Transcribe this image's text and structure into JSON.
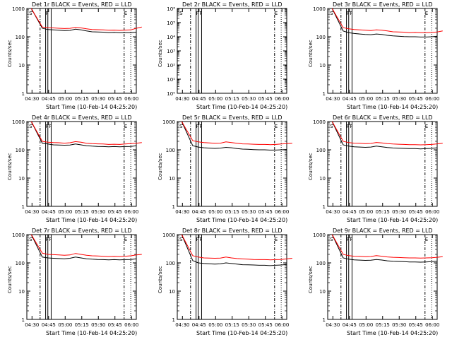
{
  "chart_data": [
    {
      "type": "line",
      "title": "Det 1r BLACK = Events, RED = LLD",
      "xlabel": "Start Time (10-Feb-14 04:25:20)",
      "ylabel": "Counts/sec",
      "yscale": "log",
      "ylim": [
        1,
        1000
      ],
      "ytick_labels": [
        "1",
        "10",
        "100",
        "1000"
      ],
      "xtick_labels": [
        "04:30",
        "04:45",
        "05:00",
        "05:15",
        "05:30",
        "05:45",
        "06:00"
      ],
      "markers": [
        "S",
        "F",
        "E"
      ],
      "x_minutes": [
        0,
        10,
        15,
        20,
        25,
        30,
        35,
        40,
        45,
        50,
        55,
        60,
        65,
        70,
        75,
        80,
        85,
        90,
        95,
        100
      ],
      "series": [
        {
          "name": "Events",
          "color": "#000000",
          "values": [
            1000,
            200,
            180,
            175,
            170,
            165,
            168,
            185,
            175,
            160,
            150,
            148,
            145,
            140,
            142,
            138,
            140,
            140,
            145,
            null
          ]
        },
        {
          "name": "LLD",
          "color": "#ff0000",
          "values": [
            1000,
            220,
            210,
            205,
            200,
            195,
            198,
            215,
            205,
            190,
            180,
            178,
            175,
            170,
            172,
            168,
            172,
            175,
            200,
            220
          ]
        }
      ]
    },
    {
      "type": "line",
      "title": "Det 2r BLACK = Events, RED = LLD",
      "xlabel": "Start Time (10-Feb-14 04:25:20)",
      "ylabel": "Counts/sec",
      "yscale": "log",
      "ylim": [
        1,
        1000000
      ],
      "ytick_labels": [
        "10⁰",
        "10¹",
        "10²",
        "10³",
        "10⁴",
        "10⁵",
        "10⁶"
      ],
      "xtick_labels": [
        "04:30",
        "04:45",
        "05:00",
        "05:15",
        "05:30",
        "05:45",
        "06:00"
      ],
      "markers": [
        "S",
        "F",
        "F",
        "E"
      ],
      "x_minutes": [],
      "series": [
        {
          "name": "Events",
          "color": "#000000",
          "values": []
        },
        {
          "name": "LLD",
          "color": "#ff0000",
          "values": []
        }
      ]
    },
    {
      "type": "line",
      "title": "Det 3r BLACK = Events, RED = LLD",
      "xlabel": "Start Time (10-Feb-14 04:25:20)",
      "ylabel": "Counts/sec",
      "yscale": "log",
      "ylim": [
        1,
        1000
      ],
      "ytick_labels": [
        "1",
        "10",
        "100",
        "1000"
      ],
      "xtick_labels": [
        "04:30",
        "04:45",
        "05:00",
        "05:15",
        "05:30",
        "05:45",
        "06:00"
      ],
      "markers": [
        "S",
        "F",
        "F",
        "E"
      ],
      "x_minutes": [
        0,
        10,
        15,
        20,
        25,
        30,
        35,
        40,
        45,
        50,
        55,
        60,
        65,
        70,
        75,
        80,
        85,
        90,
        95,
        100
      ],
      "series": [
        {
          "name": "Events",
          "color": "#000000",
          "values": [
            1000,
            160,
            140,
            130,
            125,
            120,
            118,
            125,
            120,
            112,
            108,
            105,
            102,
            100,
            100,
            98,
            98,
            100,
            105,
            null
          ]
        },
        {
          "name": "LLD",
          "color": "#ff0000",
          "values": [
            1000,
            210,
            190,
            180,
            175,
            170,
            165,
            175,
            170,
            160,
            150,
            148,
            145,
            140,
            142,
            140,
            140,
            142,
            148,
            160
          ]
        }
      ]
    },
    {
      "type": "line",
      "title": "Det 4r BLACK = Events, RED = LLD",
      "xlabel": "Start Time (10-Feb-14 04:25:20)",
      "ylabel": "Counts/sec",
      "yscale": "log",
      "ylim": [
        1,
        1000
      ],
      "ytick_labels": [
        "1",
        "10",
        "100",
        "1000"
      ],
      "xtick_labels": [
        "04:30",
        "04:45",
        "05:00",
        "05:15",
        "05:30",
        "05:45",
        "06:00"
      ],
      "markers": [
        "S",
        "F",
        "F",
        "E"
      ],
      "x_minutes": [
        0,
        10,
        15,
        20,
        25,
        30,
        35,
        40,
        45,
        50,
        55,
        60,
        65,
        70,
        75,
        80,
        85,
        90,
        95,
        100
      ],
      "series": [
        {
          "name": "Events",
          "color": "#000000",
          "values": [
            1000,
            170,
            160,
            150,
            148,
            145,
            148,
            160,
            150,
            140,
            135,
            132,
            130,
            128,
            130,
            128,
            130,
            132,
            140,
            null
          ]
        },
        {
          "name": "LLD",
          "color": "#ff0000",
          "values": [
            1000,
            200,
            185,
            180,
            178,
            172,
            178,
            195,
            185,
            170,
            165,
            162,
            160,
            155,
            158,
            155,
            160,
            165,
            170,
            180
          ]
        }
      ]
    },
    {
      "type": "line",
      "title": "Det 5r BLACK = Events, RED = LLD",
      "xlabel": "Start Time (10-Feb-14 04:25:20)",
      "ylabel": "Counts/sec",
      "yscale": "log",
      "ylim": [
        1,
        1000
      ],
      "ytick_labels": [
        "1",
        "10",
        "100",
        "1000"
      ],
      "xtick_labels": [
        "04:30",
        "04:45",
        "05:00",
        "05:15",
        "05:30",
        "05:45",
        "06:00"
      ],
      "markers": [
        "S",
        "F",
        "F",
        "E"
      ],
      "x_minutes": [
        0,
        10,
        15,
        20,
        25,
        30,
        35,
        40,
        45,
        50,
        55,
        60,
        65,
        70,
        75,
        80,
        85,
        90,
        95,
        100
      ],
      "series": [
        {
          "name": "Events",
          "color": "#000000",
          "values": [
            1000,
            140,
            125,
            118,
            115,
            112,
            115,
            122,
            118,
            110,
            106,
            104,
            102,
            100,
            100,
            98,
            98,
            100,
            103,
            null
          ]
        },
        {
          "name": "LLD",
          "color": "#ff0000",
          "values": [
            1000,
            210,
            190,
            180,
            175,
            170,
            172,
            190,
            180,
            170,
            162,
            160,
            158,
            155,
            155,
            152,
            155,
            160,
            165,
            170
          ]
        }
      ]
    },
    {
      "type": "line",
      "title": "Det 6r BLACK = Events, RED = LLD",
      "xlabel": "Start Time (10-Feb-14 04:25:20)",
      "ylabel": "Counts/sec",
      "yscale": "log",
      "ylim": [
        1,
        1000
      ],
      "ytick_labels": [
        "1",
        "10",
        "100",
        "1000"
      ],
      "xtick_labels": [
        "04:30",
        "04:45",
        "05:00",
        "05:15",
        "05:30",
        "05:45",
        "06:00"
      ],
      "markers": [
        "S",
        "F",
        "F",
        "E"
      ],
      "x_minutes": [
        0,
        10,
        15,
        20,
        25,
        30,
        35,
        40,
        45,
        50,
        55,
        60,
        65,
        70,
        75,
        80,
        85,
        90,
        95,
        100
      ],
      "series": [
        {
          "name": "Events",
          "color": "#000000",
          "values": [
            1000,
            150,
            135,
            128,
            125,
            122,
            125,
            135,
            128,
            120,
            116,
            114,
            112,
            110,
            110,
            108,
            110,
            112,
            118,
            null
          ]
        },
        {
          "name": "LLD",
          "color": "#ff0000",
          "values": [
            1000,
            200,
            180,
            172,
            170,
            165,
            168,
            182,
            175,
            165,
            160,
            158,
            155,
            152,
            152,
            150,
            152,
            155,
            162,
            170
          ]
        }
      ]
    },
    {
      "type": "line",
      "title": "Det 7r BLACK = Events, RED = LLD",
      "xlabel": "Start Time (10-Feb-14 04:25:20)",
      "ylabel": "Counts/sec",
      "yscale": "log",
      "ylim": [
        1,
        1000
      ],
      "ytick_labels": [
        "1",
        "10",
        "100",
        "1000"
      ],
      "xtick_labels": [
        "04:30",
        "04:45",
        "05:00",
        "05:15",
        "05:30",
        "05:45",
        "06:00"
      ],
      "markers": [
        "S",
        "F",
        "F",
        "E"
      ],
      "x_minutes": [
        0,
        10,
        15,
        20,
        25,
        30,
        35,
        40,
        45,
        50,
        55,
        60,
        65,
        70,
        75,
        80,
        85,
        90,
        95,
        100
      ],
      "series": [
        {
          "name": "Events",
          "color": "#000000",
          "values": [
            1000,
            160,
            150,
            145,
            142,
            140,
            145,
            160,
            150,
            140,
            135,
            132,
            130,
            128,
            130,
            128,
            130,
            132,
            140,
            null
          ]
        },
        {
          "name": "LLD",
          "color": "#ff0000",
          "values": [
            1000,
            220,
            200,
            195,
            190,
            185,
            190,
            215,
            200,
            185,
            178,
            175,
            172,
            168,
            170,
            168,
            172,
            178,
            190,
            200
          ]
        }
      ]
    },
    {
      "type": "line",
      "title": "Det 8r BLACK = Events, RED = LLD",
      "xlabel": "Start Time (10-Feb-14 04:25:20)",
      "ylabel": "Counts/sec",
      "yscale": "log",
      "ylim": [
        1,
        1000
      ],
      "ytick_labels": [
        "1",
        "10",
        "100",
        "1000"
      ],
      "xtick_labels": [
        "04:30",
        "04:45",
        "05:00",
        "05:15",
        "05:30",
        "05:45",
        "06:00"
      ],
      "markers": [
        "S",
        "F",
        "F",
        "E"
      ],
      "x_minutes": [
        0,
        10,
        15,
        20,
        25,
        30,
        35,
        40,
        45,
        50,
        55,
        60,
        65,
        70,
        75,
        80,
        85,
        90,
        95,
        100
      ],
      "series": [
        {
          "name": "Events",
          "color": "#000000",
          "values": [
            1000,
            120,
            100,
            95,
            92,
            90,
            92,
            100,
            95,
            90,
            86,
            85,
            84,
            82,
            82,
            80,
            82,
            84,
            88,
            null
          ]
        },
        {
          "name": "LLD",
          "color": "#ff0000",
          "values": [
            1000,
            180,
            160,
            150,
            148,
            145,
            148,
            160,
            150,
            142,
            138,
            135,
            132,
            130,
            130,
            128,
            130,
            132,
            138,
            145
          ]
        }
      ]
    },
    {
      "type": "line",
      "title": "Det 9r BLACK = Events, RED = LLD",
      "xlabel": "Start Time (10-Feb-14 04:25:20)",
      "ylabel": "Counts/sec",
      "yscale": "log",
      "ylim": [
        1,
        1000
      ],
      "ytick_labels": [
        "1",
        "10",
        "100",
        "1000"
      ],
      "xtick_labels": [
        "04:30",
        "04:45",
        "05:00",
        "05:15",
        "05:30",
        "05:45",
        "06:00"
      ],
      "markers": [
        "S",
        "F",
        "F",
        "E"
      ],
      "x_minutes": [
        0,
        10,
        15,
        20,
        25,
        30,
        35,
        40,
        45,
        50,
        55,
        60,
        65,
        70,
        75,
        80,
        85,
        90,
        95,
        100
      ],
      "series": [
        {
          "name": "Events",
          "color": "#000000",
          "values": [
            1000,
            150,
            135,
            128,
            125,
            122,
            124,
            132,
            126,
            118,
            114,
            112,
            110,
            108,
            108,
            106,
            108,
            110,
            115,
            null
          ]
        },
        {
          "name": "LLD",
          "color": "#ff0000",
          "values": [
            1000,
            200,
            180,
            172,
            170,
            165,
            168,
            180,
            172,
            162,
            158,
            155,
            152,
            150,
            150,
            148,
            150,
            152,
            158,
            165
          ]
        }
      ]
    }
  ]
}
